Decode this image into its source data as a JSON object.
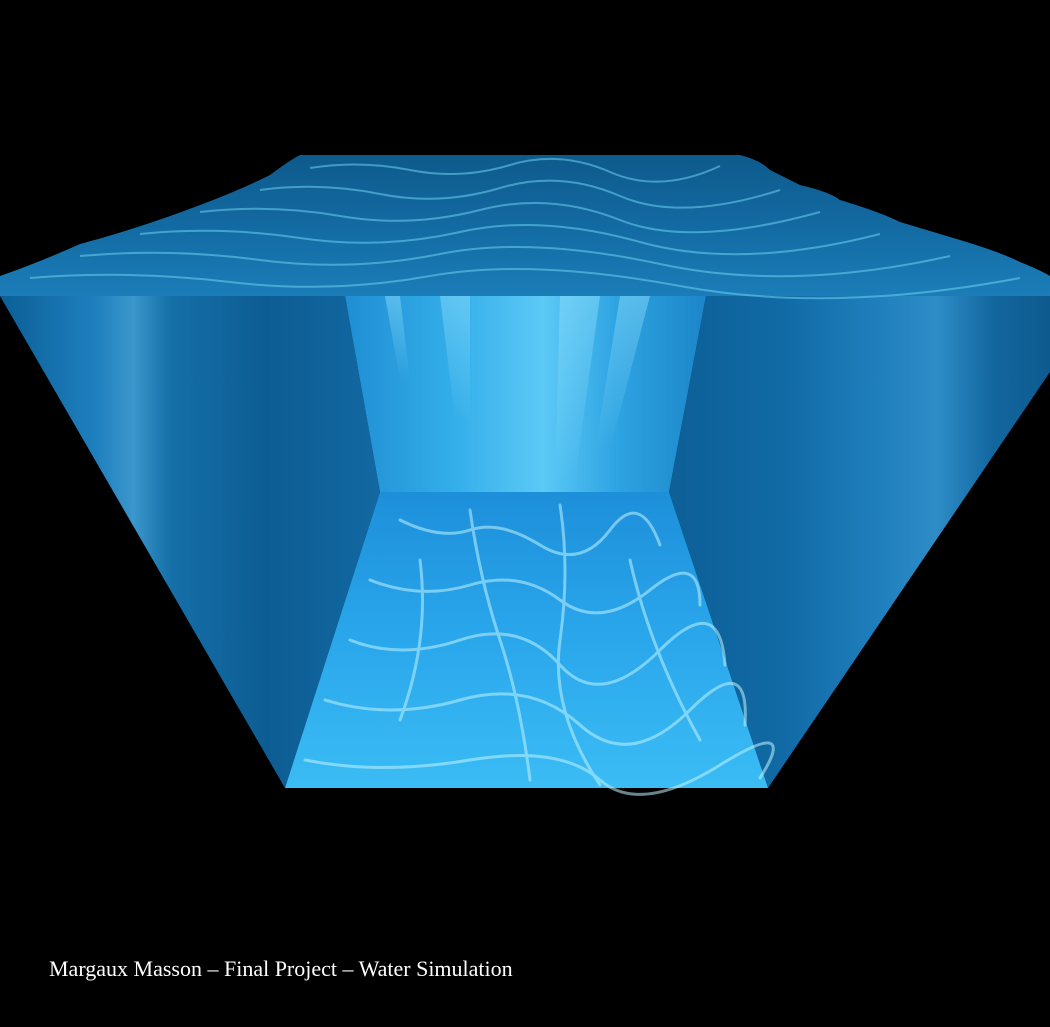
{
  "caption": "Margaux Masson – Final Project – Water Simulation",
  "scene": {
    "background_color": "#000000",
    "water_surface_color": "#0d5f93",
    "water_highlight_color": "#6ad2f0",
    "side_wall_color": "#0f6aa6",
    "back_wall_color": "#2aa0e0",
    "floor_color": "#1a9fe6",
    "caustic_color": "#bff4ff",
    "caption_color": "#ffffff"
  }
}
